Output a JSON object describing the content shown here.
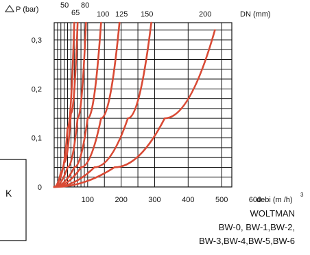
{
  "chart_data": {
    "type": "line",
    "y_axis_label": "P (bar)",
    "x_axis_label": "debi (m /h)",
    "x_axis_sup": "3",
    "dn_axis_label": "DN (mm)",
    "y_ticks": [
      "0,3",
      "0,2",
      "0,1",
      "0"
    ],
    "y_tick_values": [
      0.3,
      0.2,
      0.1,
      0
    ],
    "x_ticks": [
      "100",
      "200",
      "300",
      "400",
      "500",
      "600"
    ],
    "x_tick_values": [
      100,
      200,
      300,
      400,
      500,
      600
    ],
    "xlim": [
      0,
      610
    ],
    "ylim": [
      0,
      0.335
    ],
    "dn_labels": [
      "50",
      "65",
      "80",
      "100",
      "125",
      "150",
      "200"
    ],
    "curve_color": "#d94a35",
    "series": [
      {
        "name": "50",
        "x": [
          0,
          20,
          40,
          60
        ],
        "y": [
          0,
          0.03,
          0.12,
          0.335
        ]
      },
      {
        "name": "65",
        "x": [
          0,
          30,
          50,
          70
        ],
        "y": [
          0,
          0.05,
          0.15,
          0.335
        ]
      },
      {
        "name": "80",
        "x": [
          0,
          40,
          70,
          95
        ],
        "y": [
          0,
          0.04,
          0.14,
          0.335
        ]
      },
      {
        "name": "100",
        "x": [
          0,
          60,
          100,
          140
        ],
        "y": [
          0,
          0.04,
          0.14,
          0.335
        ]
      },
      {
        "name": "125",
        "x": [
          0,
          80,
          140,
          195
        ],
        "y": [
          0,
          0.04,
          0.14,
          0.335
        ]
      },
      {
        "name": "150",
        "x": [
          0,
          120,
          220,
          290
        ],
        "y": [
          0,
          0.04,
          0.14,
          0.335
        ]
      },
      {
        "name": "200",
        "x": [
          0,
          180,
          330,
          480
        ],
        "y": [
          0,
          0.04,
          0.14,
          0.32
        ]
      }
    ]
  },
  "side_label": "K",
  "title_line": "WOLTMAN",
  "model_line_1": "BW-0, BW-1,BW-2,",
  "model_line_2": "BW-3,BW-4,BW-5,BW-6"
}
